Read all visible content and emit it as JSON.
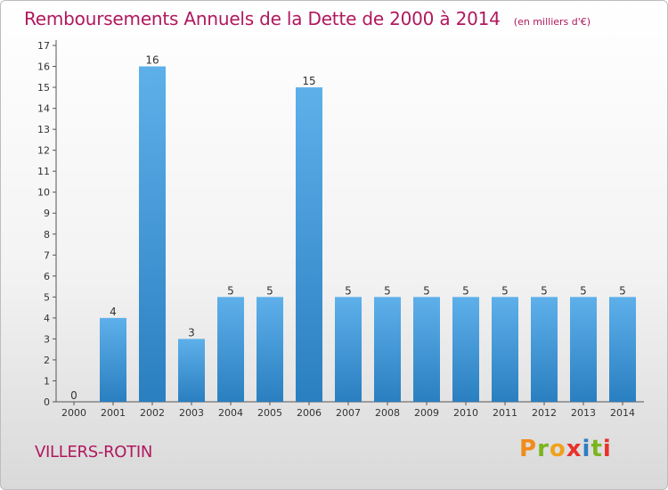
{
  "header": {
    "title": "Remboursements Annuels de la Dette de 2000 à 2014",
    "subtitle": "(en milliers d'€)"
  },
  "footer": {
    "town": "VILLERS-ROTIN",
    "logo_text": "Proxiti"
  },
  "colors": {
    "title": "#b0185e",
    "bar_top": "#5eb0ea",
    "bar_bottom": "#2a7fc0",
    "logo_letters": [
      "#f08c1a",
      "#7ab51d",
      "#f0a11a",
      "#e8322a",
      "#2f7fc1",
      "#7ab51d",
      "#e8322a"
    ]
  },
  "chart_data": {
    "type": "bar",
    "title": "Remboursements Annuels de la Dette de 2000 à 2014",
    "subtitle": "(en milliers d'€)",
    "categories": [
      "2000",
      "2001",
      "2002",
      "2003",
      "2004",
      "2005",
      "2006",
      "2007",
      "2008",
      "2009",
      "2010",
      "2011",
      "2012",
      "2013",
      "2014"
    ],
    "values": [
      0,
      4,
      16,
      3,
      5,
      5,
      15,
      5,
      5,
      5,
      5,
      5,
      5,
      5,
      5
    ],
    "y_ticks": [
      "0",
      "1",
      "2",
      "3",
      "4",
      "5",
      "6",
      "7",
      "8",
      "9",
      "10",
      "11",
      "12",
      "13",
      "14",
      "15",
      "16",
      "17"
    ],
    "ylim": [
      0,
      17
    ],
    "xlabel": "",
    "ylabel": "",
    "grid": false,
    "legend": "none"
  }
}
